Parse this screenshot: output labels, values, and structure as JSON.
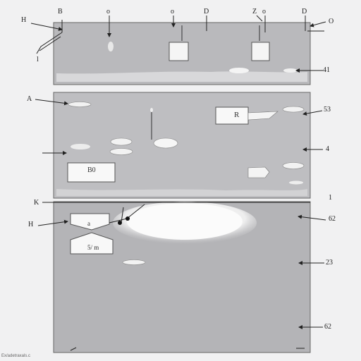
{
  "labels": {
    "top_H": "H",
    "top_B": "B",
    "top_o1": "o",
    "top_o2": "o",
    "top_D1": "D",
    "top_z": "Z",
    "top_o3": "o",
    "top_D2": "D",
    "top_right_O": "O",
    "left_tick_l": "l",
    "right_41": "41",
    "left_A": "A",
    "right_53": "53",
    "right_4": "4",
    "right_1": "1",
    "left_K": "K",
    "left_H": "H",
    "right_62a": "62",
    "right_23": "23",
    "right_62b": "62"
  },
  "boxes": {
    "box_R": "R",
    "box_B0": "B0",
    "box_small_a": "a",
    "box_5m": "5/ m"
  },
  "credit": "Ex/adetraxals.c"
}
